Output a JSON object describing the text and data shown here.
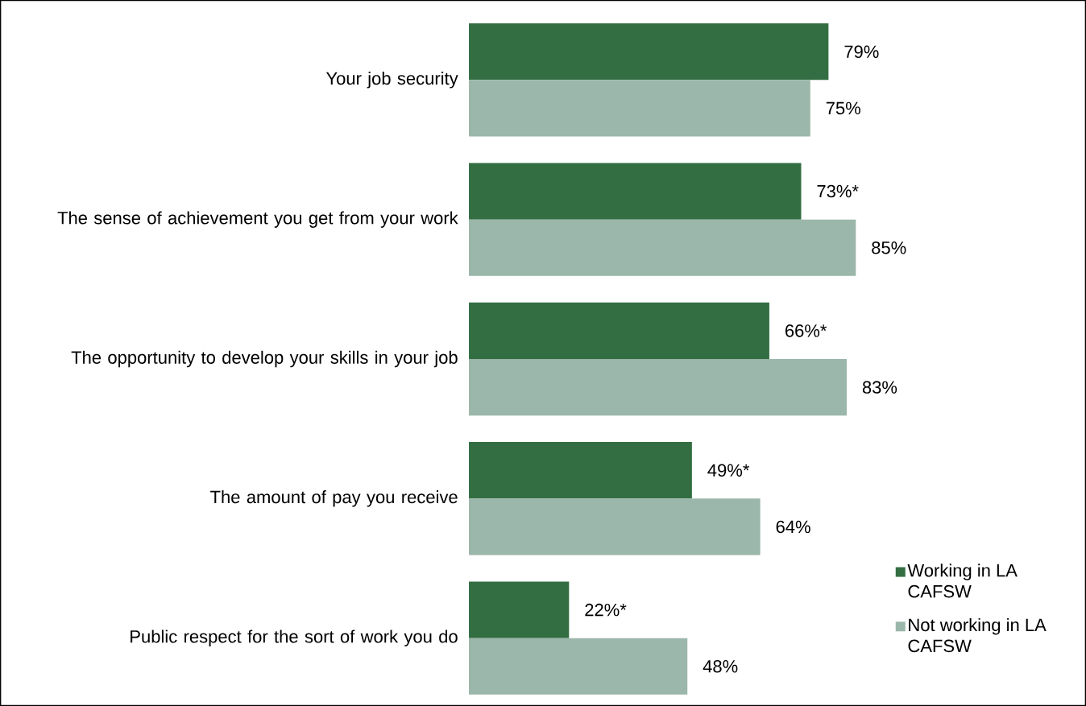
{
  "chart_data": {
    "type": "bar",
    "orientation": "horizontal",
    "legend": "bottom right",
    "categories": [
      "Your job security",
      "The sense of achievement you get from your work",
      "The opportunity to develop your skills in your job",
      "The amount of pay you receive",
      "Public respect for the sort of work you do"
    ],
    "series": [
      {
        "name": "Working in LA CAFSW",
        "color": "#336e43",
        "values": [
          79,
          73,
          66,
          49,
          22
        ],
        "value_labels": [
          "79%",
          "73%*",
          "66%*",
          "49%*",
          "22%*"
        ]
      },
      {
        "name": "Not working in LA CAFSW",
        "color": "#9bb6aa",
        "values": [
          75,
          85,
          83,
          64,
          48
        ],
        "value_labels": [
          "75%",
          "85%",
          "83%",
          "64%",
          "48%"
        ]
      }
    ]
  }
}
